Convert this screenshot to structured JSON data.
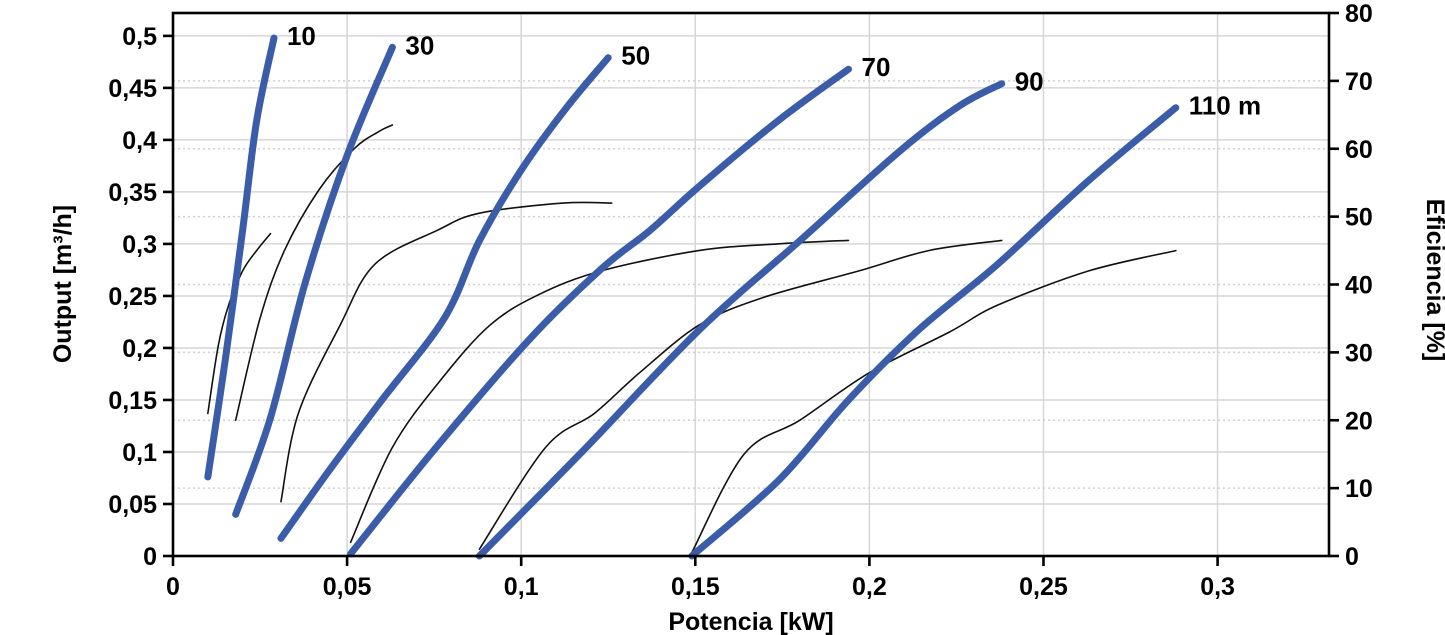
{
  "chart_data": {
    "type": "line",
    "title": "",
    "x_axis": {
      "label": "Potencia [kW]",
      "min": 0,
      "max": 0.332,
      "tick_values": [
        0,
        0.05,
        0.1,
        0.15,
        0.2,
        0.25,
        0.3
      ],
      "tick_labels": [
        "0",
        "0,05",
        "0,1",
        "0,15",
        "0,2",
        "0,25",
        "0,3"
      ],
      "gridlines": "solid"
    },
    "y_left": {
      "label": "Output [m³/h]",
      "min": 0,
      "max": 0.522,
      "tick_values": [
        0,
        0.05,
        0.1,
        0.15,
        0.2,
        0.25,
        0.3,
        0.35,
        0.4,
        0.45,
        0.5
      ],
      "tick_labels": [
        "0",
        "0,05",
        "0,1",
        "0,15",
        "0,2",
        "0,25",
        "0,3",
        "0,35",
        "0,4",
        "0,45",
        "0,5"
      ],
      "gridlines": "solid"
    },
    "y_right": {
      "label": "Eficiencia [%]",
      "min": 0,
      "max": 80,
      "tick_values": [
        0,
        10,
        20,
        30,
        40,
        50,
        60,
        70,
        80
      ],
      "tick_labels": [
        "0",
        "10",
        "20",
        "30",
        "40",
        "50",
        "60",
        "70",
        "80"
      ],
      "gridlines": "dotted"
    },
    "legend_position": "none",
    "colors": {
      "pump_curve": "#3b5da9",
      "efficiency_curve": "#111111",
      "frame": "#000000",
      "grid_solid": "#d6d6d6",
      "grid_dotted": "#cfcfcf"
    },
    "pump_curves": [
      {
        "label": "10",
        "axis": "left",
        "points": [
          [
            0.01,
            0.076
          ],
          [
            0.015,
            0.188
          ],
          [
            0.02,
            0.313
          ],
          [
            0.024,
            0.418
          ],
          [
            0.029,
            0.498
          ]
        ]
      },
      {
        "label": "30",
        "axis": "left",
        "points": [
          [
            0.018,
            0.04
          ],
          [
            0.028,
            0.133
          ],
          [
            0.038,
            0.263
          ],
          [
            0.05,
            0.385
          ],
          [
            0.063,
            0.489
          ]
        ]
      },
      {
        "label": "50",
        "axis": "left",
        "points": [
          [
            0.031,
            0.017
          ],
          [
            0.045,
            0.083
          ],
          [
            0.06,
            0.15
          ],
          [
            0.078,
            0.229
          ],
          [
            0.088,
            0.303
          ],
          [
            0.1,
            0.371
          ],
          [
            0.113,
            0.431
          ],
          [
            0.125,
            0.479
          ]
        ]
      },
      {
        "label": "70",
        "axis": "left",
        "points": [
          [
            0.051,
            0.002
          ],
          [
            0.075,
            0.102
          ],
          [
            0.102,
            0.207
          ],
          [
            0.123,
            0.276
          ],
          [
            0.137,
            0.313
          ],
          [
            0.151,
            0.355
          ],
          [
            0.174,
            0.419
          ],
          [
            0.194,
            0.468
          ]
        ]
      },
      {
        "label": "90",
        "axis": "left",
        "points": [
          [
            0.088,
            0.0
          ],
          [
            0.118,
            0.102
          ],
          [
            0.151,
            0.217
          ],
          [
            0.18,
            0.303
          ],
          [
            0.209,
            0.39
          ],
          [
            0.226,
            0.433
          ],
          [
            0.238,
            0.454
          ]
        ]
      },
      {
        "label": "110 m",
        "axis": "left",
        "points": [
          [
            0.149,
            0.0
          ],
          [
            0.174,
            0.073
          ],
          [
            0.194,
            0.15
          ],
          [
            0.214,
            0.217
          ],
          [
            0.237,
            0.281
          ],
          [
            0.263,
            0.361
          ],
          [
            0.288,
            0.431
          ]
        ]
      }
    ],
    "efficiency_curves": [
      {
        "label": "eff-10",
        "axis": "right",
        "points": [
          [
            0.01,
            21
          ],
          [
            0.013,
            31
          ],
          [
            0.016,
            37
          ],
          [
            0.02,
            42
          ],
          [
            0.024,
            45
          ],
          [
            0.028,
            47.5
          ]
        ]
      },
      {
        "label": "eff-30",
        "axis": "right",
        "points": [
          [
            0.018,
            20
          ],
          [
            0.025,
            35
          ],
          [
            0.032,
            45
          ],
          [
            0.042,
            54
          ],
          [
            0.052,
            60
          ],
          [
            0.059,
            62.5
          ],
          [
            0.063,
            63.5
          ]
        ]
      },
      {
        "label": "eff-50",
        "axis": "right",
        "points": [
          [
            0.031,
            8
          ],
          [
            0.036,
            21
          ],
          [
            0.048,
            34
          ],
          [
            0.058,
            43
          ],
          [
            0.076,
            48
          ],
          [
            0.088,
            50.5
          ],
          [
            0.112,
            52
          ],
          [
            0.126,
            52
          ]
        ]
      },
      {
        "label": "eff-70",
        "axis": "right",
        "points": [
          [
            0.051,
            2
          ],
          [
            0.063,
            16
          ],
          [
            0.077,
            26
          ],
          [
            0.091,
            34
          ],
          [
            0.105,
            38.5
          ],
          [
            0.123,
            42
          ],
          [
            0.151,
            45
          ],
          [
            0.174,
            46
          ],
          [
            0.194,
            46.5
          ]
        ]
      },
      {
        "label": "eff-90",
        "axis": "right",
        "points": [
          [
            0.088,
            1
          ],
          [
            0.107,
            16
          ],
          [
            0.121,
            21
          ],
          [
            0.134,
            27
          ],
          [
            0.151,
            34
          ],
          [
            0.169,
            38
          ],
          [
            0.197,
            42
          ],
          [
            0.217,
            45
          ],
          [
            0.238,
            46.5
          ]
        ]
      },
      {
        "label": "eff-110",
        "axis": "right",
        "points": [
          [
            0.149,
            0.5
          ],
          [
            0.164,
            15
          ],
          [
            0.18,
            20
          ],
          [
            0.2,
            27
          ],
          [
            0.223,
            33
          ],
          [
            0.237,
            37
          ],
          [
            0.263,
            42
          ],
          [
            0.288,
            45
          ]
        ]
      }
    ]
  }
}
